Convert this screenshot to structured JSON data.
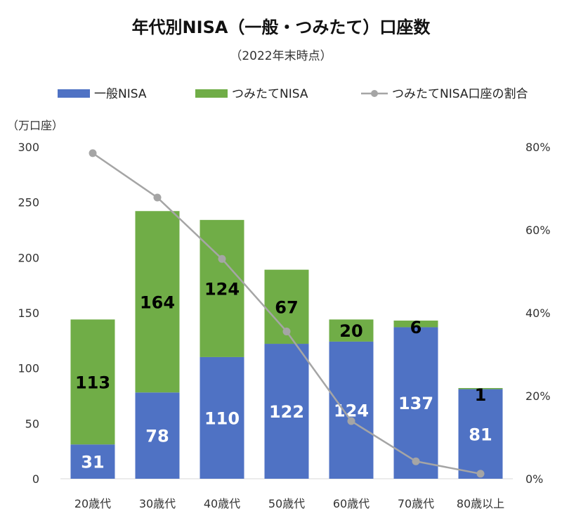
{
  "chart_data": {
    "type": "bar",
    "title": "年代別NISA（一般・つみたて）口座数",
    "subtitle": "（2022年末時点）",
    "ylabel": "（万口座）",
    "categories": [
      "20歳代",
      "30歳代",
      "40歳代",
      "50歳代",
      "60歳代",
      "70歳代",
      "80歳以上"
    ],
    "series": [
      {
        "name": "一般NISA",
        "kind": "bar",
        "values": [
          31,
          78,
          110,
          122,
          124,
          137,
          81
        ],
        "color": "#4f72c4",
        "label_color": "#ffffff"
      },
      {
        "name": "つみたてNISA",
        "kind": "bar",
        "values": [
          113,
          164,
          124,
          67,
          20,
          6,
          1
        ],
        "color": "#70ad47",
        "label_color": "#000000"
      },
      {
        "name": "つみたてNISA口座の割合",
        "kind": "line",
        "axis": "right",
        "values": [
          78.5,
          67.8,
          53.0,
          35.5,
          13.9,
          4.2,
          1.2
        ],
        "color": "#a5a5a5"
      }
    ],
    "ylim": [
      0,
      300
    ],
    "yticks": [
      "0",
      "50",
      "100",
      "150",
      "200",
      "250",
      "300"
    ],
    "y2lim": [
      0,
      80
    ],
    "y2ticks": [
      "0%",
      "20%",
      "40%",
      "60%",
      "80%"
    ],
    "stacked": true,
    "legend": "top",
    "grid": false
  }
}
